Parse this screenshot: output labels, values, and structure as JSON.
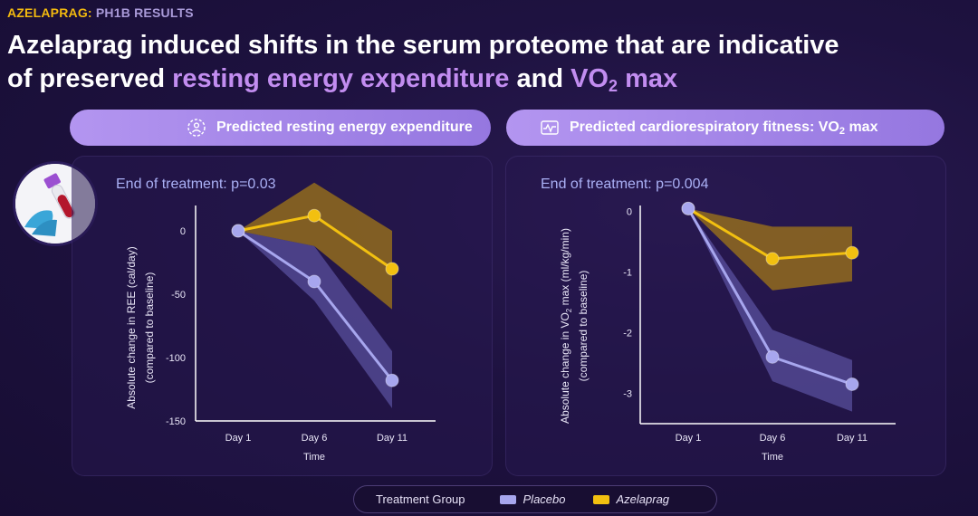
{
  "tag": {
    "brand": "AZELAPRAG",
    "separator": ":",
    "subtitle": "PH1B RESULTS"
  },
  "headline": {
    "line1": "Azelaprag induced shifts in the serum proteome that are indicative",
    "line2_pre": "of preserved ",
    "line2_hl1": "resting energy expenditure",
    "line2_mid": " and ",
    "line2_hl2_main": "VO",
    "line2_hl2_sub": "2",
    "line2_hl2_tail": " max"
  },
  "pills": {
    "left": {
      "label": "Predicted resting energy expenditure",
      "icon": "gear-person-icon"
    },
    "right": {
      "label_main": "Predicted cardiorespiratory fitness: VO",
      "label_sub": "2",
      "label_tail": " max",
      "icon": "fitness-icon"
    }
  },
  "legend": {
    "title": "Treatment Group",
    "placebo_label": "Placebo",
    "azelaprag_label": "Azelaprag",
    "placebo_color": "#a7a6ee",
    "azelaprag_color": "#f2c010"
  },
  "chart_data": [
    {
      "type": "line",
      "title": "End of treatment: p=0.03",
      "xlabel": "Time",
      "ylabel": "Absolute change in REE (cal/day)",
      "ylabel2": "(compared to baseline)",
      "categories": [
        "Day 1",
        "Day 6",
        "Day 11"
      ],
      "yticks": [
        0,
        -50,
        -100,
        -150
      ],
      "ylim": [
        -150,
        20
      ],
      "series": [
        {
          "name": "Placebo",
          "values": [
            0,
            -40,
            -118
          ],
          "band_upper": [
            0,
            -12,
            -95
          ],
          "band_lower": [
            0,
            -55,
            -140
          ],
          "color": "#a7a6ee"
        },
        {
          "name": "Azelaprag",
          "values": [
            0,
            12,
            -30
          ],
          "band_upper": [
            0,
            38,
            0
          ],
          "band_lower": [
            0,
            -12,
            -62
          ],
          "color": "#f2c010"
        }
      ]
    },
    {
      "type": "line",
      "title": "End of treatment: p=0.004",
      "xlabel": "Time",
      "ylabel": "Absolute change in VO2 max (ml/kg/min)",
      "ylabel_main": "Absolute change in VO",
      "ylabel_sub": "2",
      "ylabel_tail": " max (ml/kg/min)",
      "ylabel2": "(compared to baseline)",
      "categories": [
        "Day 1",
        "Day 6",
        "Day 11"
      ],
      "yticks": [
        0,
        -1,
        -2,
        -3
      ],
      "ylim": [
        -3.5,
        0.1
      ],
      "series": [
        {
          "name": "Placebo",
          "values": [
            0.05,
            -2.4,
            -2.85
          ],
          "band_upper": [
            0.05,
            -1.95,
            -2.45
          ],
          "band_lower": [
            0.05,
            -2.8,
            -3.3
          ],
          "color": "#a7a6ee"
        },
        {
          "name": "Azelaprag",
          "values": [
            0.05,
            -0.78,
            -0.68
          ],
          "band_upper": [
            0.05,
            -0.25,
            -0.25
          ],
          "band_lower": [
            0.05,
            -1.3,
            -1.15
          ],
          "color": "#f2c010"
        }
      ]
    }
  ]
}
